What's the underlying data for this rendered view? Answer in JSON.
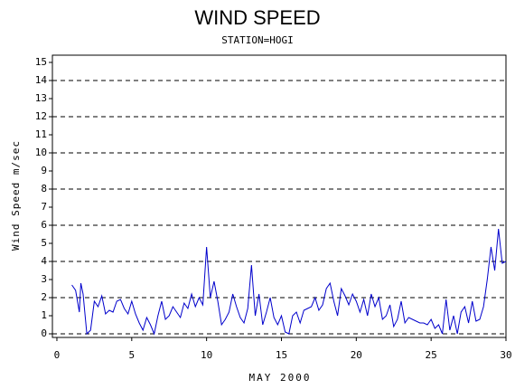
{
  "chart_data": {
    "type": "line",
    "title": "WIND SPEED",
    "subtitle": "STATION=HOGI",
    "x_label": "MAY 2000",
    "y_label": "Wind Speed m/sec",
    "xlim": [
      -0.3,
      30.0
    ],
    "xticks": [
      0,
      5,
      10,
      15,
      20,
      25,
      30
    ],
    "ylim": [
      -0.2,
      15.4
    ],
    "yticks": [
      0,
      1,
      2,
      3,
      4,
      5,
      6,
      7,
      8,
      9,
      10,
      11,
      12,
      13,
      14,
      15
    ],
    "grid_values": [
      0,
      2,
      4,
      6,
      8,
      10,
      12,
      14
    ],
    "grid": true,
    "series": [
      {
        "name": "Wind Speed",
        "color": "#0000cc",
        "x": [
          1.0,
          1.25,
          1.5,
          1.6,
          1.75,
          2.0,
          2.25,
          2.5,
          2.75,
          3.0,
          3.25,
          3.5,
          3.75,
          4.0,
          4.25,
          4.5,
          4.75,
          5.0,
          5.25,
          5.5,
          5.75,
          6.0,
          6.25,
          6.5,
          6.75,
          7.0,
          7.25,
          7.5,
          7.75,
          8.0,
          8.25,
          8.5,
          8.75,
          9.0,
          9.25,
          9.5,
          9.75,
          10.0,
          10.25,
          10.5,
          10.75,
          11.0,
          11.25,
          11.5,
          11.75,
          12.0,
          12.25,
          12.5,
          12.75,
          13.0,
          13.25,
          13.5,
          13.75,
          14.0,
          14.25,
          14.5,
          14.75,
          15.0,
          15.25,
          15.5,
          15.75,
          16.0,
          16.25,
          16.5,
          16.75,
          17.0,
          17.25,
          17.5,
          17.75,
          18.0,
          18.25,
          18.5,
          18.75,
          19.0,
          19.25,
          19.5,
          19.75,
          20.0,
          20.25,
          20.5,
          20.75,
          21.0,
          21.25,
          21.5,
          21.75,
          22.0,
          22.25,
          22.5,
          22.75,
          23.0,
          23.25,
          23.5,
          23.75,
          24.0,
          24.25,
          24.5,
          24.75,
          25.0,
          25.25,
          25.5,
          25.75,
          26.0,
          26.25,
          26.5,
          26.75,
          27.0,
          27.25,
          27.5,
          27.75,
          28.0,
          28.25,
          28.5,
          28.75,
          29.0,
          29.25,
          29.5,
          29.75,
          30.0
        ],
        "values": [
          2.7,
          2.4,
          1.2,
          2.8,
          2.2,
          0.0,
          0.2,
          1.8,
          1.5,
          2.1,
          1.1,
          1.3,
          1.2,
          1.8,
          1.9,
          1.4,
          1.1,
          1.8,
          1.1,
          0.6,
          0.2,
          0.9,
          0.5,
          0.0,
          1.0,
          1.8,
          0.8,
          1.0,
          1.5,
          1.2,
          0.9,
          1.7,
          1.4,
          2.2,
          1.5,
          2.0,
          1.6,
          4.8,
          2.0,
          2.9,
          1.8,
          0.5,
          0.8,
          1.2,
          2.2,
          1.5,
          0.9,
          0.6,
          1.4,
          3.8,
          1.0,
          2.2,
          0.5,
          1.2,
          2.0,
          0.9,
          0.5,
          1.0,
          0.1,
          0.0,
          1.0,
          1.2,
          0.6,
          1.3,
          1.4,
          1.5,
          2.0,
          1.3,
          1.6,
          2.5,
          2.8,
          1.8,
          1.0,
          2.5,
          2.1,
          1.6,
          2.2,
          1.8,
          1.2,
          1.9,
          1.0,
          2.2,
          1.5,
          2.0,
          0.8,
          1.0,
          1.6,
          0.4,
          0.8,
          1.8,
          0.6,
          0.9,
          0.8,
          0.7,
          0.6,
          0.6,
          0.5,
          0.8,
          0.3,
          0.5,
          0.0,
          1.9,
          0.2,
          1.0,
          0.0,
          1.2,
          1.5,
          0.6,
          1.8,
          0.7,
          0.8,
          1.5,
          3.0,
          4.8,
          3.5,
          5.8,
          3.9,
          4.0
        ]
      }
    ]
  }
}
